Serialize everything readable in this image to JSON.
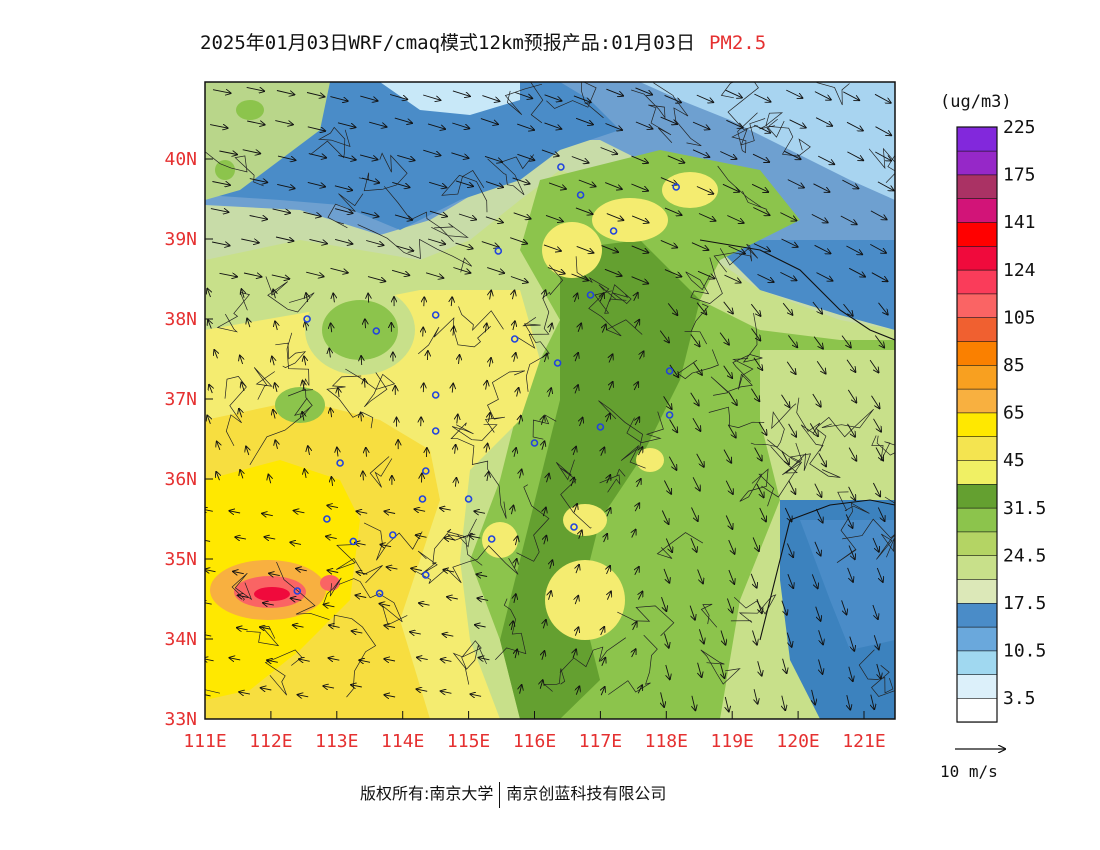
{
  "title": {
    "main": "2025年01月03日WRF/cmaq模式12km预报产品:01月03日",
    "species": "PM2.5",
    "species_color": "#e53030"
  },
  "credit": {
    "owner": "版权所有:南京大学",
    "company": "南京创蓝科技有限公司"
  },
  "colorbar": {
    "unit": "(ug/m3)",
    "colors": [
      "#ffffff",
      "#dcf0fa",
      "#a0d8f0",
      "#6aa8dc",
      "#4a8cc8",
      "#dce8b8",
      "#c8e08a",
      "#b4d464",
      "#8cc44c",
      "#64a030",
      "#f0f064",
      "#f4e450",
      "#ffe800",
      "#f8b040",
      "#f8a020",
      "#fa8000",
      "#f06030",
      "#fa6464",
      "#fa3c5a",
      "#f00a3c",
      "#ff0000",
      "#d21478",
      "#aa3264",
      "#9628c8",
      "#8228dc"
    ],
    "tick_labels": [
      "3.5",
      "10.5",
      "17.5",
      "24.5",
      "31.5",
      "45",
      "65",
      "85",
      "105",
      "124",
      "141",
      "175",
      "225"
    ]
  },
  "axes": {
    "x_labels": [
      "111E",
      "112E",
      "113E",
      "114E",
      "115E",
      "116E",
      "117E",
      "118E",
      "119E",
      "120E",
      "121E"
    ],
    "y_labels": [
      "33N",
      "34N",
      "35N",
      "36N",
      "37N",
      "38N",
      "39N",
      "40N"
    ],
    "label_color": "#e53030"
  },
  "wind": {
    "scale_label": "10 m/s"
  },
  "cities": [
    {
      "lon": 112.55,
      "lat": 38.0
    },
    {
      "lon": 113.6,
      "lat": 37.85
    },
    {
      "lon": 114.5,
      "lat": 38.05
    },
    {
      "lon": 115.45,
      "lat": 38.85
    },
    {
      "lon": 116.4,
      "lat": 39.9
    },
    {
      "lon": 116.7,
      "lat": 39.55
    },
    {
      "lon": 117.2,
      "lat": 39.1
    },
    {
      "lon": 118.15,
      "lat": 39.65
    },
    {
      "lon": 116.85,
      "lat": 38.3
    },
    {
      "lon": 115.7,
      "lat": 37.75
    },
    {
      "lon": 116.35,
      "lat": 37.45
    },
    {
      "lon": 114.5,
      "lat": 37.05
    },
    {
      "lon": 114.5,
      "lat": 36.6
    },
    {
      "lon": 114.35,
      "lat": 36.1
    },
    {
      "lon": 114.3,
      "lat": 35.75
    },
    {
      "lon": 113.85,
      "lat": 35.3
    },
    {
      "lon": 113.25,
      "lat": 35.22
    },
    {
      "lon": 112.85,
      "lat": 35.5
    },
    {
      "lon": 113.05,
      "lat": 36.2
    },
    {
      "lon": 112.4,
      "lat": 34.6
    },
    {
      "lon": 113.65,
      "lat": 34.57
    },
    {
      "lon": 114.35,
      "lat": 34.8
    },
    {
      "lon": 115.0,
      "lat": 35.75
    },
    {
      "lon": 115.35,
      "lat": 35.25
    },
    {
      "lon": 116.0,
      "lat": 36.45
    },
    {
      "lon": 117.0,
      "lat": 36.65
    },
    {
      "lon": 116.6,
      "lat": 35.4
    },
    {
      "lon": 118.05,
      "lat": 36.8
    },
    {
      "lon": 118.05,
      "lat": 37.35
    }
  ]
}
